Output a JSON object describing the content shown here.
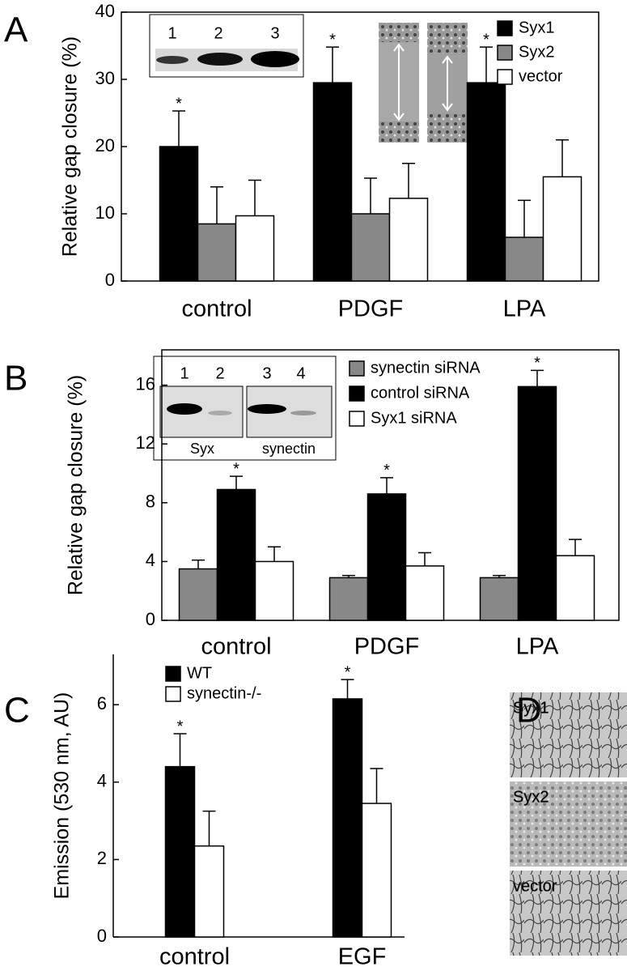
{
  "panel_letters": [
    "A",
    "B",
    "C",
    "D"
  ],
  "chart_data": [
    {
      "type": "bar",
      "y_label": "Relative gap closure (%)",
      "categories": [
        "control",
        "PDGF",
        "LPA"
      ],
      "series": [
        {
          "name": "Syx1",
          "color": "#000000",
          "values": [
            20,
            29.5,
            29.5
          ],
          "errors": [
            5.3,
            5.3,
            5.3
          ]
        },
        {
          "name": "Syx2",
          "color": "#888888",
          "values": [
            8.5,
            10,
            6.5
          ],
          "errors": [
            5.5,
            5.3,
            5.5
          ]
        },
        {
          "name": "vector",
          "color": "#ffffff",
          "values": [
            9.7,
            12.3,
            15.5
          ],
          "errors": [
            5.3,
            5.2,
            5.5
          ]
        }
      ],
      "ylim": [
        0,
        40
      ],
      "yticks": [
        0,
        10,
        20,
        30,
        40
      ],
      "annotation": "*",
      "annotated_series": 0,
      "inset_lanes": [
        "1",
        "2",
        "3"
      ]
    },
    {
      "type": "bar",
      "y_label": "Relative gap closure (%)",
      "categories": [
        "control",
        "PDGF",
        "LPA"
      ],
      "series": [
        {
          "name": "synectin siRNA",
          "color": "#888888",
          "values": [
            3.5,
            2.9,
            2.9
          ],
          "errors": [
            0.6,
            0.15,
            0.15
          ]
        },
        {
          "name": "control siRNA",
          "color": "#000000",
          "values": [
            8.9,
            8.6,
            15.9
          ],
          "errors": [
            0.9,
            1.1,
            1.1
          ]
        },
        {
          "name": "Syx1 siRNA",
          "color": "#ffffff",
          "values": [
            4.0,
            3.7,
            4.4
          ],
          "errors": [
            1.0,
            0.9,
            1.1
          ]
        }
      ],
      "ylim": [
        0,
        18.4
      ],
      "yticks": [
        0,
        4,
        8,
        12,
        16
      ],
      "annotation": "*",
      "annotated_series": 1,
      "inset_lanes": [
        "1",
        "2",
        "3",
        "4"
      ],
      "inset_blots": [
        "Syx",
        "synectin"
      ]
    },
    {
      "type": "bar",
      "y_label": "Emission (530 nm, AU)",
      "categories": [
        "control",
        "EGF"
      ],
      "series": [
        {
          "name": "WT",
          "color": "#000000",
          "values": [
            4.4,
            6.15
          ],
          "errors": [
            0.85,
            0.5
          ]
        },
        {
          "name": "synectin-/-",
          "color": "#ffffff",
          "values": [
            2.35,
            3.45
          ],
          "errors": [
            0.9,
            0.9
          ]
        }
      ],
      "ylim": [
        0,
        7.3
      ],
      "yticks": [
        0,
        2,
        4,
        6
      ],
      "annotation": "*",
      "annotated_series": 0
    }
  ],
  "panel_d": {
    "labels": [
      "Syx1",
      "Syx2",
      "vector"
    ]
  }
}
